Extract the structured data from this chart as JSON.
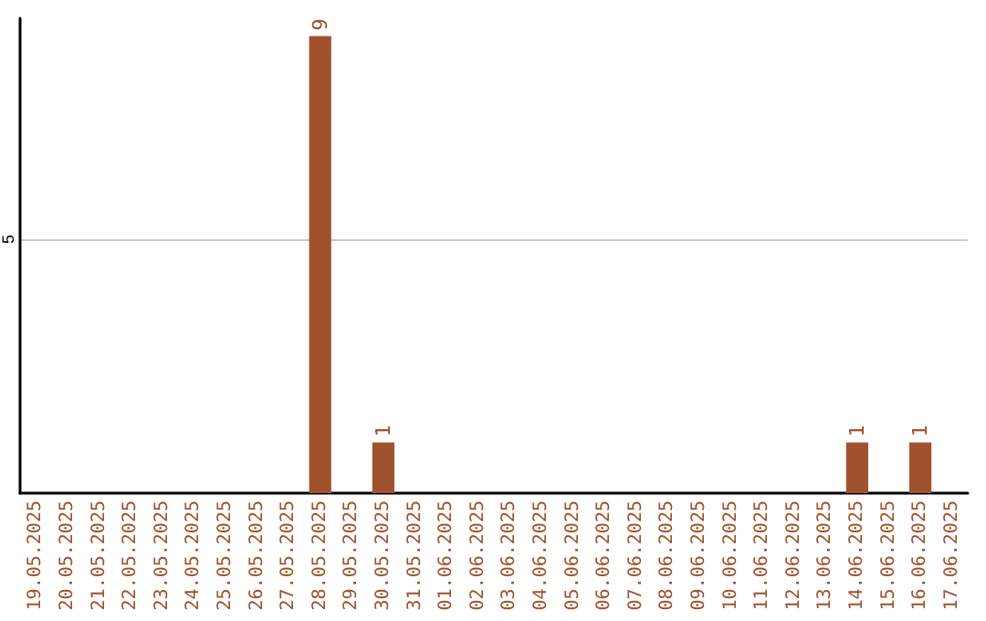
{
  "chart_data": {
    "type": "bar",
    "categories": [
      "19.05.2025",
      "20.05.2025",
      "21.05.2025",
      "22.05.2025",
      "23.05.2025",
      "24.05.2025",
      "25.05.2025",
      "26.05.2025",
      "27.05.2025",
      "28.05.2025",
      "29.05.2025",
      "30.05.2025",
      "31.05.2025",
      "01.06.2025",
      "02.06.2025",
      "03.06.2025",
      "04.06.2025",
      "05.06.2025",
      "06.06.2025",
      "07.06.2025",
      "08.06.2025",
      "09.06.2025",
      "10.06.2025",
      "11.06.2025",
      "12.06.2025",
      "13.06.2025",
      "14.06.2025",
      "15.06.2025",
      "16.06.2025",
      "17.06.2025"
    ],
    "values": [
      0,
      0,
      0,
      0,
      0,
      0,
      0,
      0,
      0,
      9,
      0,
      1,
      0,
      0,
      0,
      0,
      0,
      0,
      0,
      0,
      0,
      0,
      0,
      0,
      0,
      0,
      1,
      0,
      1,
      0
    ],
    "value_labels": [
      null,
      null,
      null,
      null,
      null,
      null,
      null,
      null,
      null,
      "9",
      null,
      "1",
      null,
      null,
      null,
      null,
      null,
      null,
      null,
      null,
      null,
      null,
      null,
      null,
      null,
      null,
      "1",
      null,
      "1",
      null
    ],
    "color": "#a0522d",
    "ylim": [
      0,
      9.35
    ],
    "yticks": [
      5
    ],
    "grid": "y"
  }
}
